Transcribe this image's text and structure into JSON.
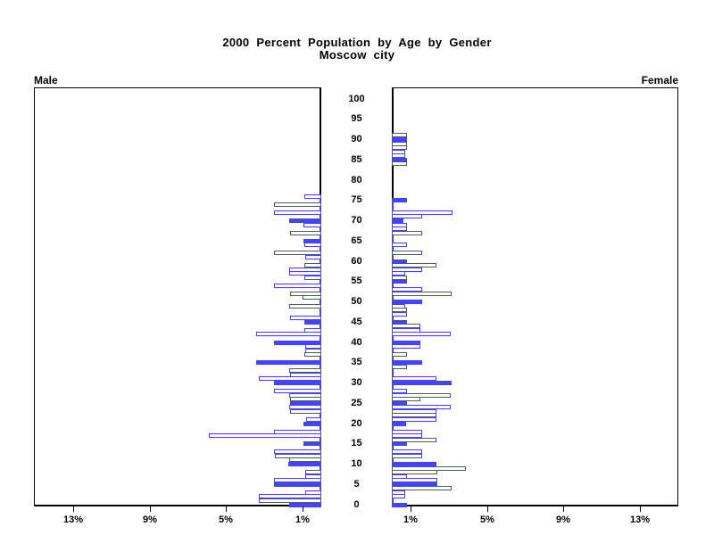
{
  "title": {
    "line1": "2000 Percent Population by Age by Gender",
    "line2": "Moscow city"
  },
  "panels": {
    "male_label": "Male",
    "female_label": "Female"
  },
  "age_axis": {
    "labels": [
      "100",
      "95",
      "90",
      "85",
      "80",
      "75",
      "70",
      "65",
      "60",
      "55",
      "50",
      "45",
      "40",
      "35",
      "30",
      "25",
      "20",
      "15",
      "10",
      "5",
      "0"
    ],
    "values": [
      100,
      95,
      90,
      85,
      80,
      75,
      70,
      65,
      60,
      55,
      50,
      45,
      40,
      35,
      30,
      25,
      20,
      15,
      10,
      5,
      0
    ]
  },
  "x_axis": {
    "male_tick_labels": [
      "13%",
      "9%",
      "5%",
      "1%"
    ],
    "male_tick_values": [
      13,
      9,
      5,
      1
    ],
    "female_tick_labels": [
      "1%",
      "5%",
      "9%",
      "13%"
    ],
    "female_tick_values": [
      1,
      5,
      9,
      13
    ],
    "max_percent": 15
  },
  "colors": {
    "bar_blue": "#4545EE",
    "hollow_fill": "#FFFFFF",
    "frame_black": "#000000",
    "background": "#FFFFFF"
  },
  "chart_data": {
    "type": "bar",
    "subtype": "population-pyramid",
    "title": "2000 Percent Population by Age by Gender",
    "subtitle": "Moscow city",
    "left_series_label": "Male",
    "right_series_label": "Female",
    "unit": "percent of total population per single year of age",
    "age_min": 0,
    "age_max": 100,
    "x_range_pct": [
      0,
      15
    ],
    "style_rule": "ages divisible by 5 drawn as solid blue bars; all other ages drawn as white bars with blue outline",
    "male_pct_by_age": [
      1.7,
      3.3,
      3.3,
      0.85,
      0.1,
      2.5,
      2.5,
      0.85,
      0.85,
      0.1,
      1.75,
      1.7,
      2.45,
      2.5,
      0.1,
      0.95,
      0.1,
      5.9,
      2.5,
      0.1,
      0.95,
      0.8,
      0.1,
      1.65,
      1.7,
      1.65,
      1.65,
      1.7,
      2.5,
      0.1,
      2.5,
      3.3,
      1.65,
      1.7,
      0.1,
      3.4,
      0.1,
      0.9,
      0.85,
      0.85,
      2.5,
      0.1,
      3.4,
      0.9,
      0.1,
      0.9,
      1.65,
      0.1,
      0.1,
      1.7,
      0.1,
      1.0,
      1.65,
      0.1,
      2.5,
      0.1,
      0.9,
      1.7,
      1.7,
      0.9,
      0.1,
      0.85,
      2.5,
      0.1,
      0.9,
      0.95,
      0.1,
      1.65,
      0.1,
      0.95,
      1.7,
      0.1,
      2.5,
      0.1,
      2.5,
      0.1,
      0.9,
      0,
      0,
      0,
      0,
      0,
      0,
      0,
      0,
      0,
      0,
      0,
      0,
      0,
      0,
      0,
      0,
      0,
      0,
      0,
      0,
      0,
      0,
      0,
      0,
      0
    ],
    "female_pct_by_age": [
      0.8,
      0.1,
      0.7,
      0.7,
      3.15,
      2.4,
      2.4,
      0.8,
      2.4,
      3.9,
      2.35,
      0.1,
      1.6,
      1.6,
      0.1,
      0.8,
      2.35,
      1.6,
      1.6,
      0.1,
      0.75,
      2.35,
      2.35,
      2.35,
      3.1,
      0.8,
      1.5,
      3.1,
      0.8,
      0.1,
      3.15,
      2.35,
      0.1,
      0.1,
      0.8,
      1.6,
      0.1,
      0.8,
      0.1,
      1.5,
      1.5,
      0.1,
      3.1,
      1.5,
      1.5,
      0.8,
      0.1,
      0.8,
      0.8,
      0.7,
      1.6,
      0.1,
      3.15,
      1.6,
      0.1,
      0.8,
      0.8,
      0.7,
      1.6,
      2.35,
      0.8,
      0.1,
      1.6,
      0.1,
      0.8,
      0.1,
      0.1,
      1.6,
      0.8,
      0.8,
      0.6,
      1.6,
      3.2,
      0.1,
      0.1,
      0.8,
      0,
      0,
      0,
      0,
      0,
      0,
      0,
      0,
      0.8,
      0.8,
      0.7,
      0.7,
      0.8,
      0.8,
      0.8,
      0.8,
      0,
      0,
      0,
      0,
      0,
      0,
      0,
      0,
      0
    ]
  }
}
